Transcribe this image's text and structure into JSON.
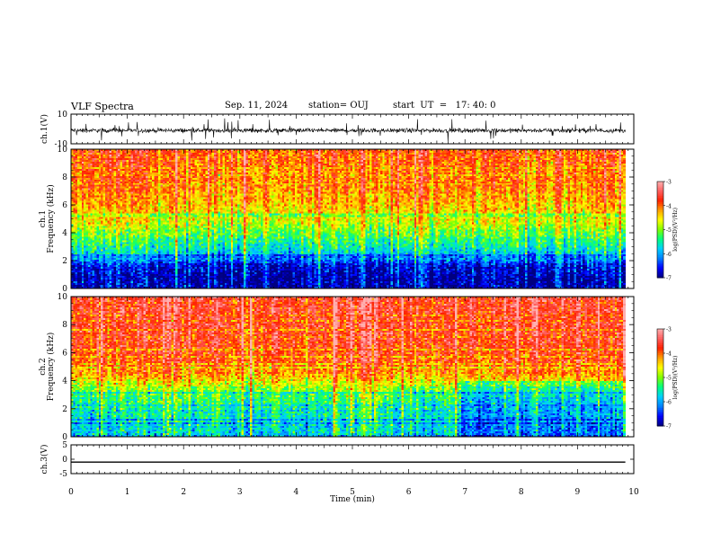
{
  "header": {
    "title": "VLF Spectra",
    "date": "Sep. 11, 2024",
    "station": "station= OUJ",
    "start": "start  UT  =   17: 40: 0"
  },
  "colors": {
    "colormap": [
      "#000080",
      "#0000ff",
      "#0080ff",
      "#00d0ff",
      "#00ff80",
      "#80ff00",
      "#ffff00",
      "#ffa000",
      "#ff2000",
      "#ff6060",
      "#ffb0b0"
    ],
    "trace": "#000000",
    "axis": "#000000"
  },
  "chart_data": [
    {
      "type": "line",
      "title": "",
      "ylabel": "ch.1(V)",
      "ylim": [
        -10,
        10
      ],
      "yticks": [
        "10",
        "-10"
      ],
      "xlim": [
        0,
        10
      ],
      "series": [
        {
          "values": "noisy waveform centred near -1 V with spikes to about ±6 V"
        }
      ]
    },
    {
      "type": "heatmap",
      "ylabel": "Frequency (kHz)",
      "channel_label": "ch.1",
      "ylim": [
        0,
        10
      ],
      "yticks": [
        "0",
        "2",
        "4",
        "6",
        "8",
        "10"
      ],
      "xlim": [
        0,
        9.85
      ],
      "colorbar": {
        "label": "log(PSD)(V²/Hz)",
        "ticks": [
          "-3",
          "-4",
          "-5",
          "-6",
          "-7"
        ],
        "range": [
          -7,
          -3
        ]
      },
      "profile": [
        [
          0,
          -6.8
        ],
        [
          0.6,
          -6.9
        ],
        [
          1.5,
          -6.7
        ],
        [
          2.5,
          -5.8
        ],
        [
          3.5,
          -5.3
        ],
        [
          5,
          -4.6
        ],
        [
          7,
          -4.1
        ],
        [
          10,
          -3.9
        ]
      ]
    },
    {
      "type": "heatmap",
      "ylabel": "Frequency (kHz)",
      "channel_label": "ch.2",
      "ylim": [
        0,
        10
      ],
      "yticks": [
        "0",
        "2",
        "4",
        "6",
        "8",
        "10"
      ],
      "xlim": [
        0,
        9.85
      ],
      "colorbar": {
        "label": "log(PSD)(V²/Hz)",
        "ticks": [
          "-3",
          "-4",
          "-5",
          "-6",
          "-7"
        ],
        "range": [
          -7,
          -3
        ]
      },
      "profile": [
        [
          0,
          -5.8
        ],
        [
          1,
          -5.6
        ],
        [
          2,
          -5.5
        ],
        [
          3,
          -5.2
        ],
        [
          4,
          -4.5
        ],
        [
          5,
          -3.9
        ],
        [
          7,
          -3.7
        ],
        [
          10,
          -3.6
        ]
      ]
    },
    {
      "type": "line",
      "ylabel": "ch.3(V)",
      "ylim": [
        -5,
        5
      ],
      "yticks": [
        "5",
        "0",
        "-5"
      ],
      "xlim": [
        0,
        10
      ],
      "series": [
        {
          "values": [
            -1,
            -1
          ]
        }
      ]
    }
  ],
  "xaxis": {
    "label": "Time (min)",
    "ticks": [
      "0",
      "1",
      "2",
      "3",
      "4",
      "5",
      "6",
      "7",
      "8",
      "9",
      "10"
    ],
    "range": [
      0,
      10
    ]
  }
}
